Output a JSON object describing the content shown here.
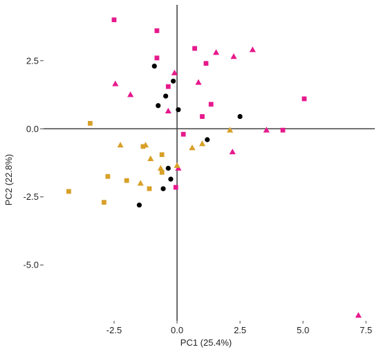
{
  "chart_data": {
    "type": "scatter",
    "title": "",
    "xlabel": "PC1 (25.4%)",
    "ylabel": "PC2 (22.8%)",
    "xlim": [
      -5.3,
      7.85
    ],
    "ylim": [
      -7.05,
      4.55
    ],
    "xticks": [
      -2.5,
      0.0,
      2.5,
      5.0,
      7.5
    ],
    "xtick_labels": [
      "-2.5",
      "0.0",
      "2.5",
      "5.0",
      "7.5"
    ],
    "yticks": [
      2.5,
      0.0,
      -2.5,
      -5.0
    ],
    "ytick_labels": [
      "2.5",
      "0.0",
      "-2.5",
      "-5.0"
    ],
    "grid": false,
    "reference_lines": {
      "x": 0,
      "y": 0
    },
    "series": [
      {
        "color": "#e6198c",
        "marker": "square",
        "points": [
          [
            -2.5,
            4.0
          ],
          [
            -0.8,
            3.6
          ],
          [
            -0.8,
            2.6
          ],
          [
            0.7,
            2.95
          ],
          [
            1.15,
            2.4
          ],
          [
            -0.35,
            1.55
          ],
          [
            1.35,
            0.9
          ],
          [
            1.0,
            0.45
          ],
          [
            5.05,
            1.1
          ],
          [
            0.25,
            -0.2
          ],
          [
            4.2,
            -0.05
          ],
          [
            -0.05,
            -2.15
          ]
        ]
      },
      {
        "color": "#e6198c",
        "marker": "triangle",
        "points": [
          [
            1.55,
            2.8
          ],
          [
            2.25,
            2.65
          ],
          [
            3.0,
            2.9
          ],
          [
            -0.1,
            2.05
          ],
          [
            0.85,
            1.7
          ],
          [
            -2.45,
            1.65
          ],
          [
            -1.85,
            1.25
          ],
          [
            -0.35,
            0.65
          ],
          [
            3.55,
            -0.05
          ],
          [
            2.2,
            -0.85
          ],
          [
            0.05,
            -1.45
          ],
          [
            7.2,
            -6.85
          ]
        ]
      },
      {
        "color": "#d8a028",
        "marker": "square",
        "points": [
          [
            -3.45,
            0.2
          ],
          [
            -1.35,
            -0.65
          ],
          [
            -0.6,
            -0.95
          ],
          [
            -0.6,
            -1.6
          ],
          [
            -1.1,
            -2.2
          ],
          [
            -2.75,
            -1.75
          ],
          [
            -2.0,
            -1.9
          ],
          [
            -4.3,
            -2.3
          ],
          [
            -2.9,
            -2.7
          ]
        ]
      },
      {
        "color": "#d8a028",
        "marker": "triangle",
        "points": [
          [
            -2.25,
            -0.6
          ],
          [
            -1.25,
            -0.6
          ],
          [
            -1.05,
            -1.1
          ],
          [
            -0.65,
            -1.45
          ],
          [
            -1.45,
            -2.0
          ],
          [
            0.0,
            -1.35
          ],
          [
            0.6,
            -0.7
          ],
          [
            1.0,
            -0.55
          ],
          [
            2.1,
            -0.05
          ]
        ]
      },
      {
        "color": "#000000",
        "marker": "circle",
        "points": [
          [
            -0.9,
            2.3
          ],
          [
            -0.15,
            1.75
          ],
          [
            -0.45,
            1.2
          ],
          [
            -0.75,
            0.85
          ],
          [
            0.05,
            0.7
          ],
          [
            2.5,
            0.45
          ],
          [
            1.2,
            -0.4
          ],
          [
            -0.35,
            -1.45
          ],
          [
            -0.25,
            -1.85
          ],
          [
            -0.55,
            -2.2
          ],
          [
            -1.5,
            -2.8
          ]
        ]
      }
    ]
  }
}
